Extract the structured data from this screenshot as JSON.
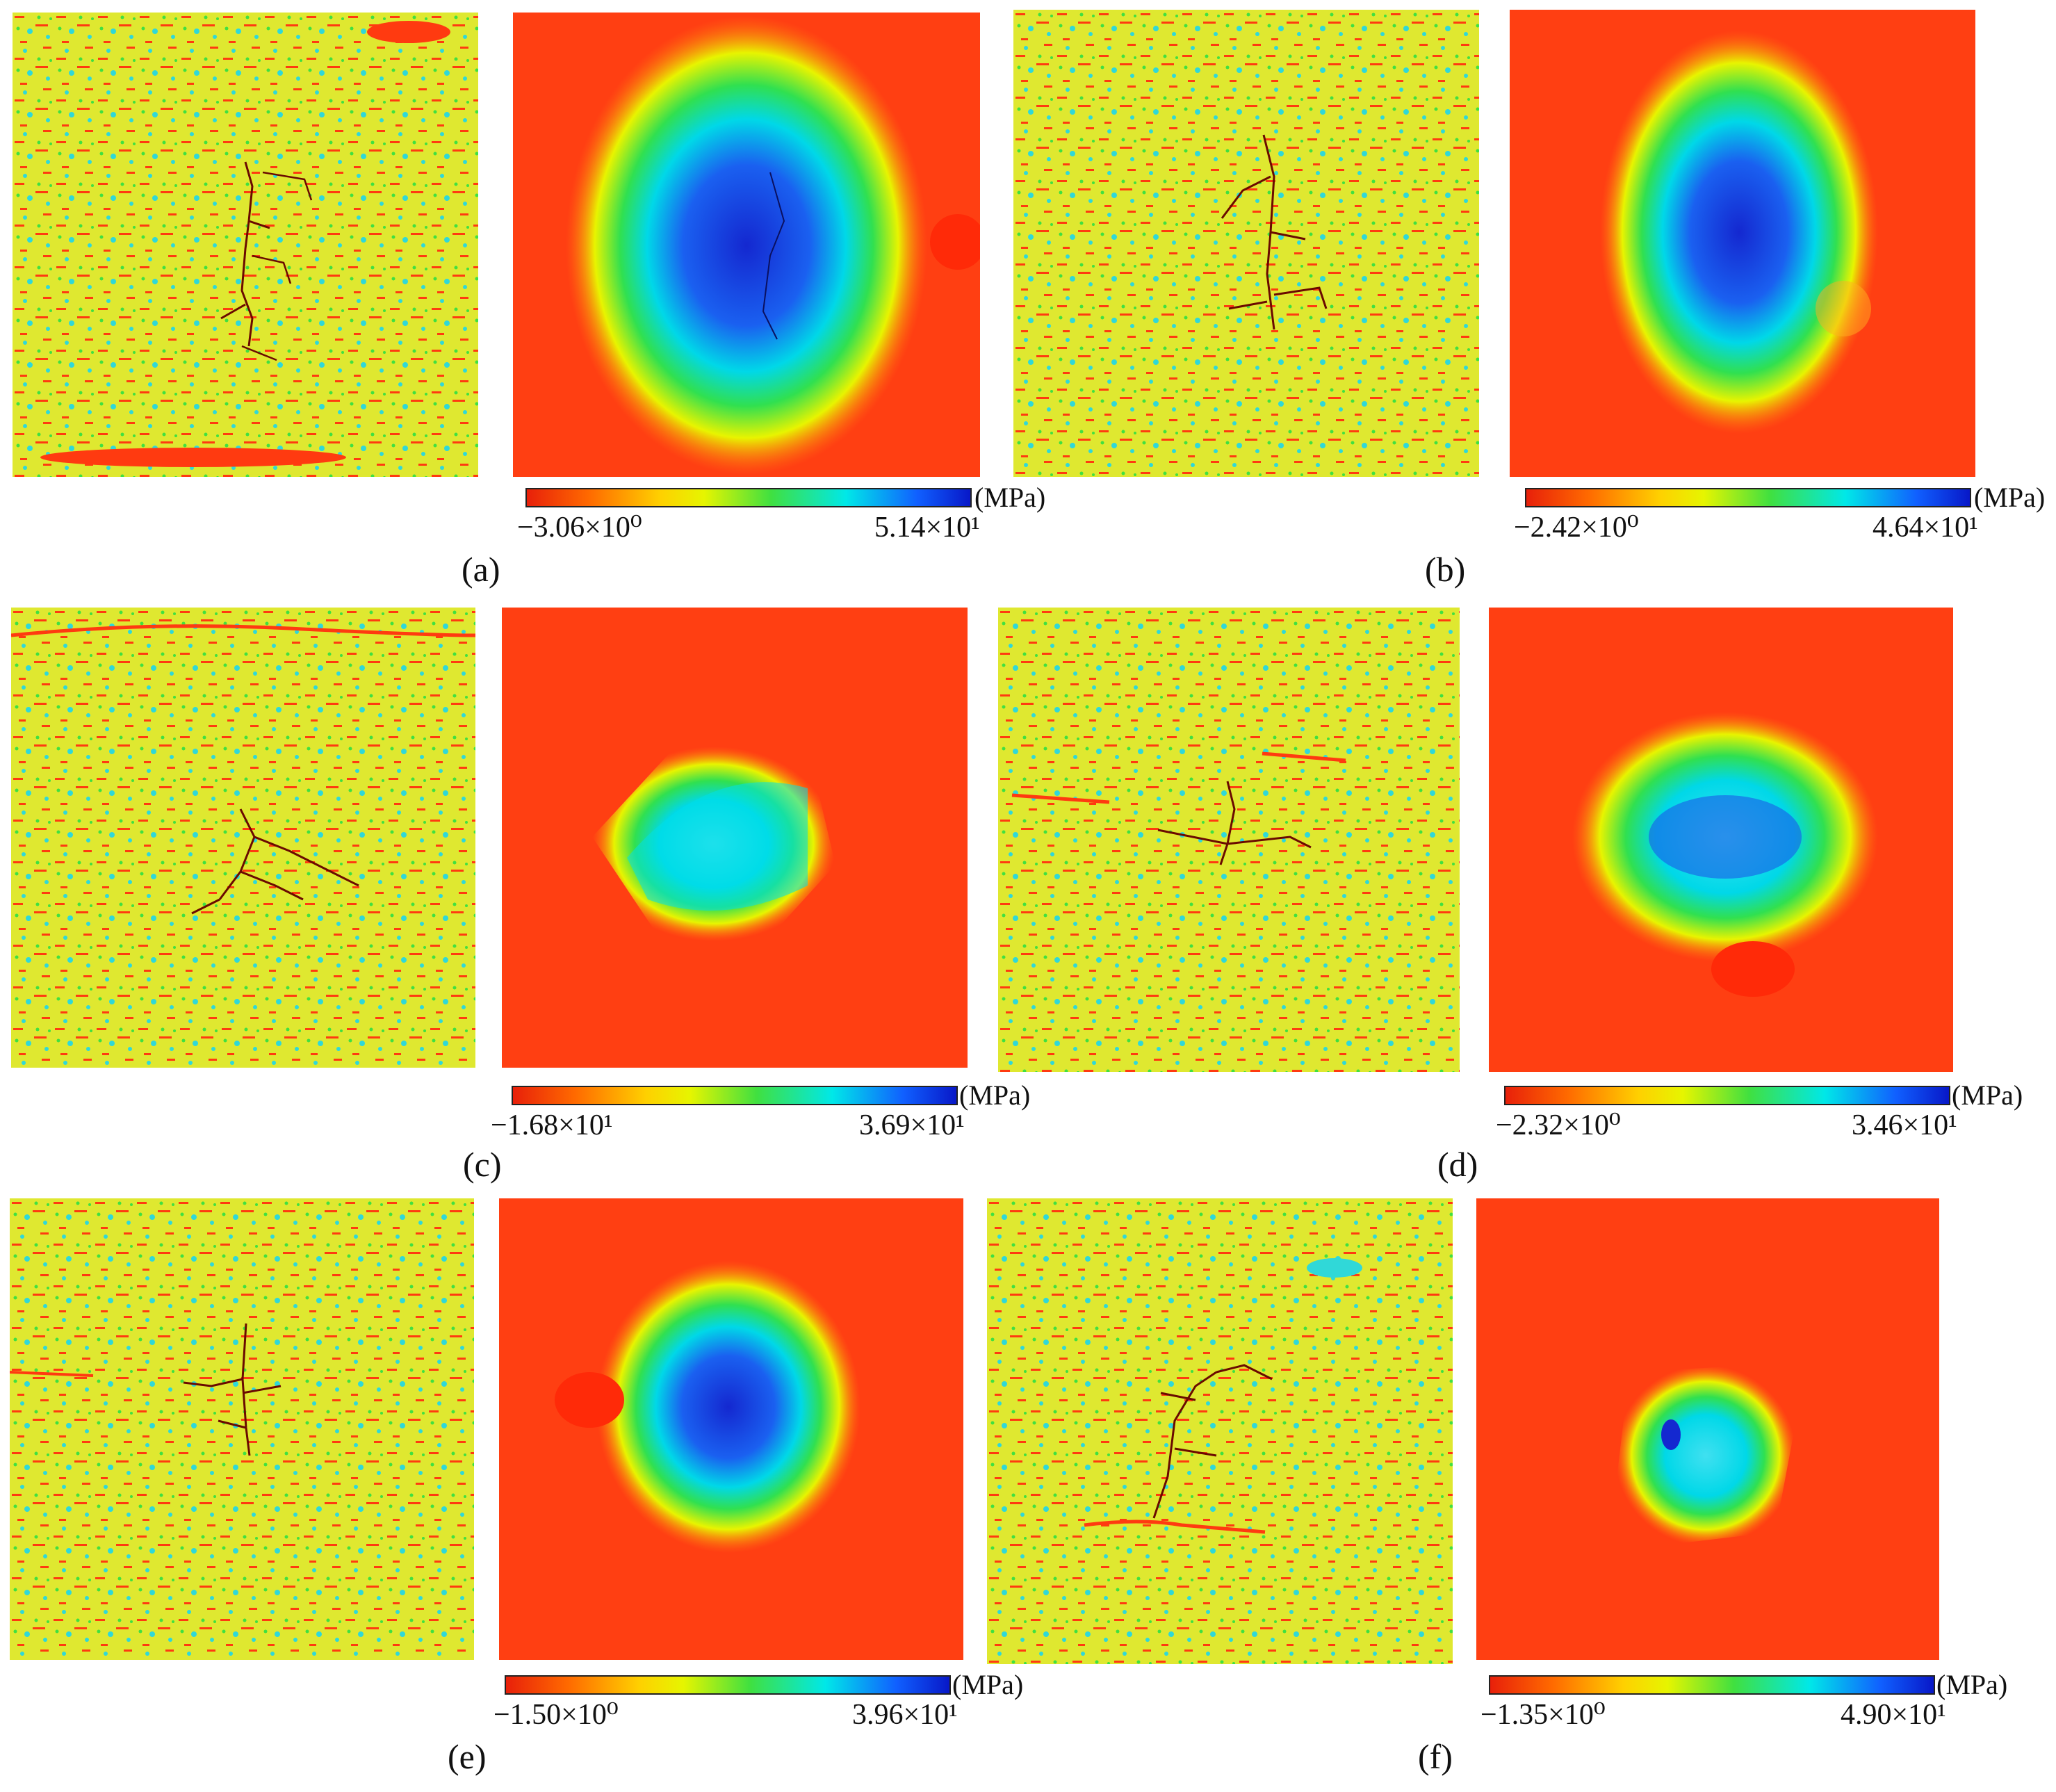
{
  "unit": "(MPa)",
  "panels": [
    {
      "label": "(a)",
      "min": "−3.06×10⁰",
      "max": "5.14×10¹"
    },
    {
      "label": "(b)",
      "min": "−2.42×10⁰",
      "max": "4.64×10¹"
    },
    {
      "label": "(c)",
      "min": "−1.68×10¹",
      "max": "3.69×10¹"
    },
    {
      "label": "(d)",
      "min": "−2.32×10⁰",
      "max": "3.46×10¹"
    },
    {
      "label": "(e)",
      "min": "−1.50×10⁰",
      "max": "3.96×10¹"
    },
    {
      "label": "(f)",
      "min": "−1.35×10⁰",
      "max": "4.90×10¹"
    }
  ],
  "colors": {
    "map_red": "#ff3a10",
    "map_yellow": "#e8f000",
    "map_green": "#40e040",
    "map_cyan": "#00d8e8",
    "map_blue": "#1a3ae0",
    "crack": "#6a0a00"
  }
}
